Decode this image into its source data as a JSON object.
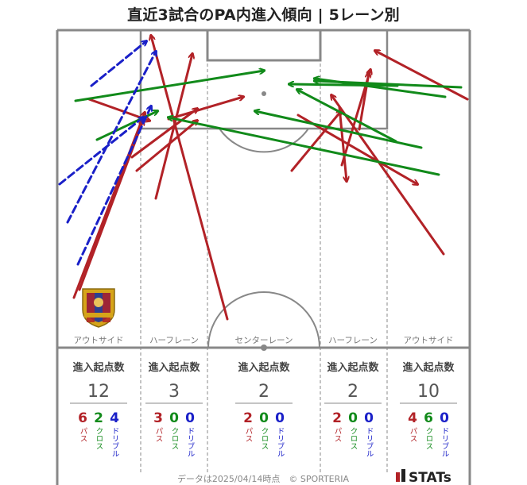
{
  "title": "直近3試合のPA内進入傾向 | 5レーン別",
  "colors": {
    "pass": "#b22227",
    "cross": "#118a1a",
    "dribble": "#1a20c8"
  },
  "lanes": [
    {
      "label": "アウトサイド",
      "stat_head": "進入起点数",
      "total": "12",
      "pass": "6",
      "cross": "2",
      "dribble": "4"
    },
    {
      "label": "ハーフレーン",
      "stat_head": "進入起点数",
      "total": "3",
      "pass": "3",
      "cross": "0",
      "dribble": "0"
    },
    {
      "label": "センターレーン",
      "stat_head": "進入起点数",
      "total": "2",
      "pass": "2",
      "cross": "0",
      "dribble": "0"
    },
    {
      "label": "ハーフレーン",
      "stat_head": "進入起点数",
      "total": "2",
      "pass": "2",
      "cross": "0",
      "dribble": "0"
    },
    {
      "label": "アウトサイド",
      "stat_head": "進入起点数",
      "total": "10",
      "pass": "4",
      "cross": "6",
      "dribble": "0"
    }
  ],
  "type_labels": {
    "pass": "パス",
    "cross": "クロス",
    "dribble": "ドリブル"
  },
  "footer": "データは2025/04/14時点　© SPORTERIA",
  "brand": "STATs",
  "chart_data": {
    "type": "arrow-map",
    "categories": [
      "アウトサイド",
      "ハーフレーン",
      "センターレーン",
      "ハーフレーン",
      "アウトサイド"
    ],
    "series": [
      {
        "name": "パス",
        "values": [
          6,
          3,
          2,
          2,
          4
        ]
      },
      {
        "name": "クロス",
        "values": [
          2,
          0,
          0,
          0,
          6
        ]
      },
      {
        "name": "ドリブル",
        "values": [
          4,
          0,
          0,
          0,
          0
        ]
      }
    ],
    "arrows": [
      {
        "type": "pass",
        "from": [
          93,
          375
        ],
        "to": [
          182,
          142
        ]
      },
      {
        "type": "pass",
        "from": [
          100,
          365
        ],
        "to": [
          180,
          152
        ]
      },
      {
        "type": "pass",
        "from": [
          112,
          125
        ],
        "to": [
          188,
          152
        ]
      },
      {
        "type": "pass",
        "from": [
          166,
          198
        ],
        "to": [
          248,
          137
        ]
      },
      {
        "type": "pass",
        "from": [
          172,
          215
        ],
        "to": [
          248,
          152
        ]
      },
      {
        "type": "pass",
        "from": [
          196,
          250
        ],
        "to": [
          242,
          68
        ]
      },
      {
        "type": "pass",
        "from": [
          286,
          402
        ],
        "to": [
          190,
          45
        ]
      },
      {
        "type": "pass",
        "from": [
          212,
          150
        ],
        "to": [
          306,
          122
        ]
      },
      {
        "type": "pass",
        "from": [
          367,
          215
        ],
        "to": [
          429,
          140
        ]
      },
      {
        "type": "pass",
        "from": [
          375,
          145
        ],
        "to": [
          525,
          232
        ]
      },
      {
        "type": "pass",
        "from": [
          427,
          135
        ],
        "to": [
          436,
          228
        ]
      },
      {
        "type": "pass",
        "from": [
          430,
          208
        ],
        "to": [
          466,
          88
        ]
      },
      {
        "type": "pass",
        "from": [
          452,
          163
        ],
        "to": [
          464,
          92
        ]
      },
      {
        "type": "pass",
        "from": [
          588,
          125
        ],
        "to": [
          472,
          64
        ]
      },
      {
        "type": "pass",
        "from": [
          558,
          320
        ],
        "to": [
          417,
          120
        ]
      },
      {
        "type": "cross",
        "from": [
          95,
          127
        ],
        "to": [
          332,
          89
        ]
      },
      {
        "type": "cross",
        "from": [
          122,
          176
        ],
        "to": [
          198,
          140
        ]
      },
      {
        "type": "cross",
        "from": [
          498,
          178
        ],
        "to": [
          374,
          113
        ]
      },
      {
        "type": "cross",
        "from": [
          530,
          186
        ],
        "to": [
          321,
          140
        ]
      },
      {
        "type": "cross",
        "from": [
          552,
          220
        ],
        "to": [
          212,
          148
        ]
      },
      {
        "type": "cross",
        "from": [
          580,
          110
        ],
        "to": [
          396,
          102
        ]
      },
      {
        "type": "cross",
        "from": [
          560,
          122
        ],
        "to": [
          396,
          99
        ]
      },
      {
        "type": "cross",
        "from": [
          500,
          108
        ],
        "to": [
          364,
          106
        ]
      },
      {
        "type": "dribble",
        "from": [
          115,
          108
        ],
        "to": [
          184,
          52
        ]
      },
      {
        "type": "dribble",
        "from": [
          75,
          232
        ],
        "to": [
          180,
          148
        ]
      },
      {
        "type": "dribble",
        "from": [
          85,
          280
        ],
        "to": [
          196,
          65
        ]
      },
      {
        "type": "dribble",
        "from": [
          98,
          333
        ],
        "to": [
          190,
          134
        ]
      }
    ]
  }
}
